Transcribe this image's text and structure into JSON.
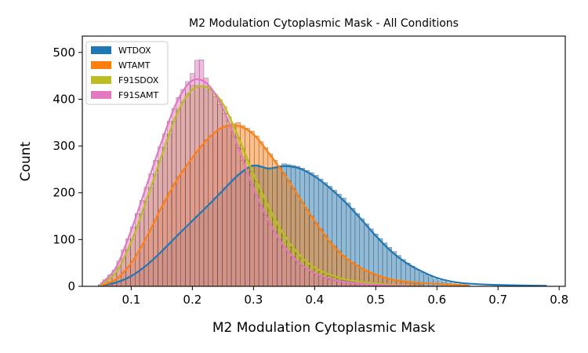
{
  "chart_data": {
    "type": "bar",
    "subtype": "overlaid-histogram-with-kde",
    "title": "M2 Modulation Cytoplasmic Mask - All Conditions",
    "xlabel": "M2 Modulation Cytoplasmic Mask",
    "ylabel": "Count",
    "xlim": [
      0.02,
      0.81
    ],
    "ylim": [
      0,
      535
    ],
    "xticks": [
      "0.1",
      "0.2",
      "0.3",
      "0.4",
      "0.5",
      "0.6",
      "0.7",
      "0.8"
    ],
    "yticks": [
      "0",
      "100",
      "200",
      "300",
      "400",
      "500"
    ],
    "grid": false,
    "legend_position": "top-left",
    "bin_width": 0.0075,
    "series": [
      {
        "name": "WTDOX",
        "color": "#1f77b4",
        "kde": [
          [
            0.05,
            2
          ],
          [
            0.075,
            8
          ],
          [
            0.1,
            22
          ],
          [
            0.125,
            45
          ],
          [
            0.15,
            75
          ],
          [
            0.175,
            108
          ],
          [
            0.2,
            140
          ],
          [
            0.225,
            172
          ],
          [
            0.25,
            205
          ],
          [
            0.275,
            238
          ],
          [
            0.3,
            258
          ],
          [
            0.325,
            252
          ],
          [
            0.35,
            257
          ],
          [
            0.375,
            252
          ],
          [
            0.4,
            235
          ],
          [
            0.425,
            210
          ],
          [
            0.45,
            180
          ],
          [
            0.475,
            145
          ],
          [
            0.5,
            108
          ],
          [
            0.525,
            75
          ],
          [
            0.55,
            50
          ],
          [
            0.575,
            32
          ],
          [
            0.6,
            18
          ],
          [
            0.625,
            10
          ],
          [
            0.65,
            6
          ],
          [
            0.7,
            3
          ],
          [
            0.78,
            1
          ]
        ],
        "bars": [
          [
            0.05,
            1
          ],
          [
            0.075,
            7
          ],
          [
            0.1,
            20
          ],
          [
            0.125,
            44
          ],
          [
            0.15,
            73
          ],
          [
            0.175,
            106
          ],
          [
            0.2,
            138
          ],
          [
            0.225,
            170
          ],
          [
            0.25,
            210
          ],
          [
            0.275,
            236
          ],
          [
            0.3,
            262
          ],
          [
            0.325,
            248
          ],
          [
            0.35,
            262
          ],
          [
            0.375,
            256
          ],
          [
            0.4,
            240
          ],
          [
            0.425,
            214
          ],
          [
            0.45,
            186
          ],
          [
            0.475,
            148
          ],
          [
            0.5,
            112
          ],
          [
            0.525,
            80
          ],
          [
            0.55,
            52
          ],
          [
            0.575,
            30
          ],
          [
            0.6,
            14
          ],
          [
            0.625,
            6
          ],
          [
            0.65,
            3
          ]
        ]
      },
      {
        "name": "WTAMT",
        "color": "#ff7f0e",
        "kde": [
          [
            0.05,
            2
          ],
          [
            0.075,
            15
          ],
          [
            0.1,
            50
          ],
          [
            0.125,
            105
          ],
          [
            0.15,
            170
          ],
          [
            0.175,
            228
          ],
          [
            0.2,
            275
          ],
          [
            0.225,
            315
          ],
          [
            0.25,
            340
          ],
          [
            0.275,
            343
          ],
          [
            0.3,
            325
          ],
          [
            0.325,
            285
          ],
          [
            0.35,
            240
          ],
          [
            0.375,
            190
          ],
          [
            0.4,
            140
          ],
          [
            0.425,
            95
          ],
          [
            0.45,
            62
          ],
          [
            0.475,
            40
          ],
          [
            0.5,
            25
          ],
          [
            0.525,
            15
          ],
          [
            0.55,
            10
          ],
          [
            0.6,
            5
          ],
          [
            0.65,
            2
          ]
        ],
        "bars": [
          [
            0.05,
            1
          ],
          [
            0.075,
            14
          ],
          [
            0.1,
            48
          ],
          [
            0.125,
            100
          ],
          [
            0.15,
            172
          ],
          [
            0.175,
            232
          ],
          [
            0.2,
            272
          ],
          [
            0.225,
            318
          ],
          [
            0.25,
            342
          ],
          [
            0.275,
            350
          ],
          [
            0.3,
            330
          ],
          [
            0.325,
            288
          ],
          [
            0.35,
            242
          ],
          [
            0.375,
            188
          ],
          [
            0.4,
            140
          ],
          [
            0.425,
            96
          ],
          [
            0.45,
            62
          ],
          [
            0.475,
            40
          ],
          [
            0.5,
            24
          ],
          [
            0.525,
            14
          ],
          [
            0.55,
            8
          ],
          [
            0.575,
            4
          ]
        ]
      },
      {
        "name": "F91SDOX",
        "color": "#bcbd22",
        "kde": [
          [
            0.05,
            4
          ],
          [
            0.075,
            30
          ],
          [
            0.1,
            95
          ],
          [
            0.125,
            185
          ],
          [
            0.15,
            280
          ],
          [
            0.175,
            370
          ],
          [
            0.2,
            420
          ],
          [
            0.225,
            425
          ],
          [
            0.25,
            390
          ],
          [
            0.275,
            320
          ],
          [
            0.3,
            240
          ],
          [
            0.325,
            170
          ],
          [
            0.35,
            110
          ],
          [
            0.375,
            68
          ],
          [
            0.4,
            40
          ],
          [
            0.425,
            25
          ],
          [
            0.45,
            15
          ],
          [
            0.5,
            6
          ],
          [
            0.55,
            2
          ]
        ],
        "bars": [
          [
            0.05,
            3
          ],
          [
            0.075,
            28
          ],
          [
            0.1,
            92
          ],
          [
            0.125,
            182
          ],
          [
            0.15,
            278
          ],
          [
            0.175,
            372
          ],
          [
            0.2,
            430
          ],
          [
            0.225,
            428
          ],
          [
            0.25,
            392
          ],
          [
            0.275,
            318
          ],
          [
            0.3,
            238
          ],
          [
            0.325,
            168
          ],
          [
            0.35,
            108
          ],
          [
            0.375,
            66
          ],
          [
            0.4,
            38
          ],
          [
            0.425,
            22
          ],
          [
            0.45,
            12
          ],
          [
            0.475,
            6
          ],
          [
            0.5,
            2
          ]
        ]
      },
      {
        "name": "F91SAMT",
        "color": "#e377c2",
        "kde": [
          [
            0.05,
            5
          ],
          [
            0.075,
            40
          ],
          [
            0.1,
            120
          ],
          [
            0.125,
            215
          ],
          [
            0.15,
            310
          ],
          [
            0.175,
            395
          ],
          [
            0.2,
            440
          ],
          [
            0.225,
            432
          ],
          [
            0.25,
            380
          ],
          [
            0.275,
            298
          ],
          [
            0.3,
            210
          ],
          [
            0.325,
            140
          ],
          [
            0.35,
            85
          ],
          [
            0.375,
            50
          ],
          [
            0.4,
            28
          ],
          [
            0.425,
            16
          ],
          [
            0.45,
            9
          ],
          [
            0.5,
            3
          ],
          [
            0.55,
            1
          ]
        ],
        "bars": [
          [
            0.05,
            4
          ],
          [
            0.075,
            38
          ],
          [
            0.1,
            118
          ],
          [
            0.125,
            212
          ],
          [
            0.15,
            308
          ],
          [
            0.175,
            398
          ],
          [
            0.2,
            455
          ],
          [
            0.212,
            500
          ],
          [
            0.225,
            432
          ],
          [
            0.25,
            378
          ],
          [
            0.275,
            296
          ],
          [
            0.3,
            208
          ],
          [
            0.325,
            138
          ],
          [
            0.35,
            84
          ],
          [
            0.375,
            48
          ],
          [
            0.4,
            26
          ],
          [
            0.425,
            14
          ],
          [
            0.45,
            8
          ],
          [
            0.475,
            4
          ],
          [
            0.5,
            2
          ]
        ]
      }
    ]
  }
}
